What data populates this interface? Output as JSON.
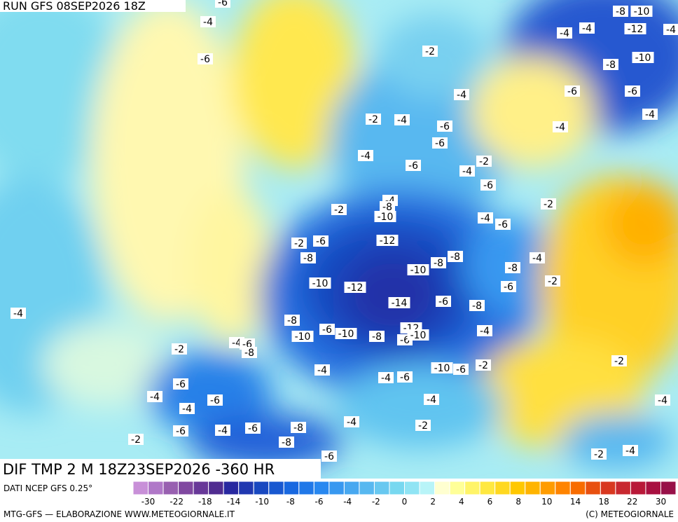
{
  "header": {
    "run": "RUN GFS 08SEP2026 18Z",
    "field": "DIF TMP 2 M 18Z23SEP2026 -360 HR"
  },
  "labels": [
    -6,
    -4,
    -6,
    -8,
    -10,
    -12,
    -4,
    -4,
    -4,
    -2,
    -10,
    -8,
    -4,
    -6,
    -6,
    -4,
    -2,
    -4,
    -6,
    -4,
    -6,
    -4,
    -2,
    -6,
    -4,
    -6,
    -2,
    -4,
    -8,
    -2,
    -10,
    -4,
    -6,
    -2,
    -6,
    -12,
    -8,
    -8,
    -8,
    -4,
    -10,
    -8,
    -2,
    -10,
    -12,
    -6,
    -4,
    -14,
    -6,
    -8,
    -8,
    -12,
    -6,
    -10,
    -10,
    -8,
    -6,
    -10,
    -4,
    -4,
    -6,
    -8,
    -2,
    -2,
    -10,
    -6,
    -2,
    -4,
    -4,
    -6,
    -6,
    -4,
    -6,
    -4,
    -4,
    -4,
    -2,
    -4,
    -8,
    -6,
    -4,
    -6,
    -4,
    -2,
    -8,
    -2,
    -6
  ],
  "colorbar": {
    "ticks": [
      -30,
      -22,
      -18,
      -14,
      -10,
      -8,
      -6,
      -4,
      -2,
      0,
      2,
      4,
      6,
      8,
      10,
      14,
      18,
      22,
      30
    ],
    "colors": [
      "#c890d8",
      "#b078c8",
      "#9860b0",
      "#8048a0",
      "#683898",
      "#502c90",
      "#2828a0",
      "#2038b0",
      "#1848c0",
      "#1858d0",
      "#1868e0",
      "#2078e8",
      "#2888f0",
      "#3898f0",
      "#48a8f0",
      "#58b8f0",
      "#68c8f0",
      "#78d8f0",
      "#90e4f4",
      "#b8f4f8",
      "#ffffd0",
      "#ffff98",
      "#fff468",
      "#ffe840",
      "#ffd820",
      "#ffc800",
      "#ffb400",
      "#ff9c00",
      "#ff8400",
      "#f86c00",
      "#e85010",
      "#d83820",
      "#c82830",
      "#b81838",
      "#a81040",
      "#981048"
    ]
  },
  "footer": {
    "source": "DATI NCEP GFS 0.25°",
    "credit": "MTG-GFS — ELABORAZIONE WWW.METEOGIORNALE.IT",
    "copyright": "(C) METEOGIORNALE"
  }
}
